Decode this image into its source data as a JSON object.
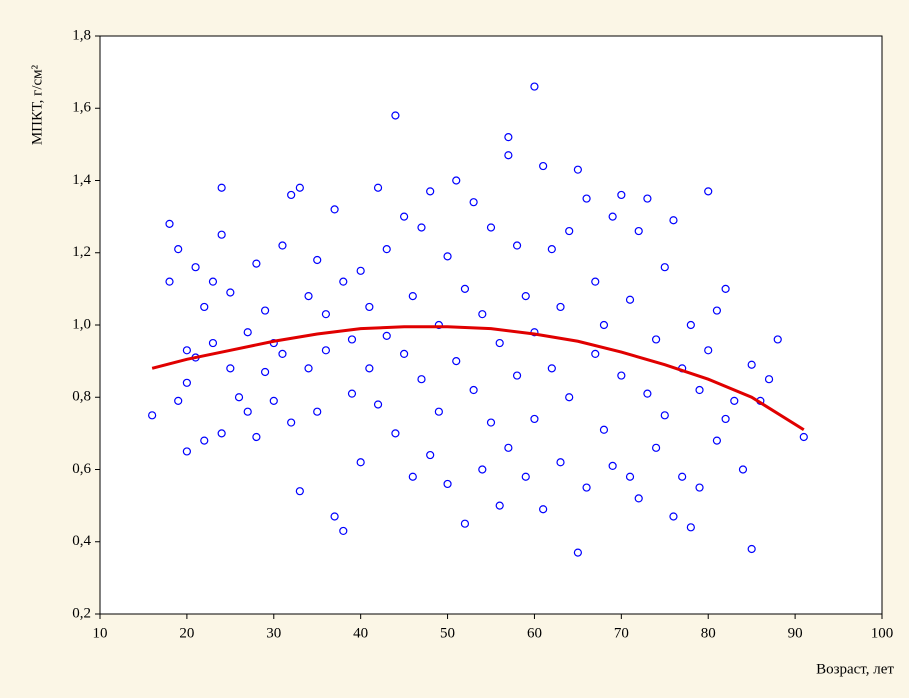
{
  "chart_data": {
    "type": "scatter",
    "x_label": "Возраст, лет",
    "y_label": "МПКТ, г/см²",
    "xlim": [
      10,
      100
    ],
    "xticks": [
      10,
      20,
      30,
      40,
      50,
      60,
      70,
      80,
      90,
      100
    ],
    "ylim": [
      0.2,
      1.8
    ],
    "yticks": [
      {
        "value": 0.2,
        "label": "0,2"
      },
      {
        "value": 0.4,
        "label": "0,4"
      },
      {
        "value": 0.6,
        "label": "0,6"
      },
      {
        "value": 0.8,
        "label": "0,8"
      },
      {
        "value": 1.0,
        "label": "1,0"
      },
      {
        "value": 1.2,
        "label": "1,2"
      },
      {
        "value": 1.4,
        "label": "1,4"
      },
      {
        "value": 1.6,
        "label": "1,6"
      },
      {
        "value": 1.8,
        "label": "1,8"
      }
    ],
    "points": {
      "color": "#0000ff",
      "x": [
        16,
        18,
        18,
        19,
        19,
        20,
        20,
        20,
        21,
        21,
        22,
        22,
        23,
        23,
        24,
        24,
        24,
        25,
        25,
        26,
        27,
        27,
        28,
        28,
        29,
        29,
        30,
        30,
        31,
        31,
        32,
        32,
        33,
        33,
        34,
        34,
        35,
        35,
        36,
        36,
        37,
        37,
        38,
        38,
        39,
        39,
        40,
        40,
        41,
        41,
        42,
        42,
        43,
        43,
        44,
        44,
        45,
        45,
        46,
        46,
        47,
        47,
        48,
        48,
        49,
        49,
        50,
        50,
        51,
        51,
        52,
        52,
        53,
        53,
        54,
        54,
        55,
        55,
        56,
        56,
        57,
        57,
        57,
        58,
        58,
        59,
        59,
        60,
        60,
        60,
        61,
        61,
        62,
        62,
        63,
        63,
        64,
        64,
        65,
        65,
        66,
        66,
        67,
        67,
        68,
        68,
        69,
        69,
        70,
        70,
        71,
        71,
        72,
        72,
        73,
        73,
        74,
        74,
        75,
        75,
        76,
        76,
        77,
        77,
        78,
        78,
        79,
        79,
        80,
        80,
        81,
        81,
        82,
        82,
        83,
        84,
        85,
        85,
        86,
        87,
        88,
        91
      ],
      "y": [
        0.75,
        1.28,
        1.12,
        1.21,
        0.79,
        0.93,
        0.65,
        0.84,
        0.91,
        1.16,
        0.68,
        1.05,
        0.95,
        1.12,
        1.38,
        0.7,
        1.25,
        0.88,
        1.09,
        0.8,
        0.98,
        0.76,
        1.17,
        0.69,
        0.87,
        1.04,
        0.95,
        0.79,
        1.22,
        0.92,
        1.36,
        0.73,
        1.38,
        0.54,
        1.08,
        0.88,
        1.18,
        0.76,
        1.03,
        0.93,
        0.47,
        1.32,
        0.43,
        1.12,
        0.81,
        0.96,
        1.15,
        0.62,
        0.88,
        1.05,
        1.38,
        0.78,
        0.97,
        1.21,
        1.58,
        0.7,
        0.92,
        1.3,
        0.58,
        1.08,
        0.85,
        1.27,
        1.37,
        0.64,
        1.0,
        0.76,
        0.56,
        1.19,
        1.4,
        0.9,
        0.45,
        1.1,
        0.82,
        1.34,
        0.6,
        1.03,
        1.27,
        0.73,
        0.95,
        0.5,
        1.52,
        1.47,
        0.66,
        1.22,
        0.86,
        1.08,
        0.58,
        1.66,
        0.98,
        0.74,
        1.44,
        0.49,
        0.88,
        1.21,
        0.62,
        1.05,
        1.26,
        0.8,
        0.37,
        1.43,
        1.35,
        0.55,
        0.92,
        1.12,
        0.71,
        1.0,
        1.3,
        0.61,
        1.36,
        0.86,
        0.58,
        1.07,
        1.26,
        0.52,
        0.81,
        1.35,
        0.96,
        0.66,
        1.16,
        0.75,
        1.29,
        0.47,
        0.88,
        0.58,
        0.44,
        1.0,
        0.82,
        0.55,
        1.37,
        0.93,
        1.04,
        0.68,
        0.74,
        1.1,
        0.79,
        0.6,
        0.38,
        0.89,
        0.79,
        0.85,
        0.96,
        0.69
      ]
    },
    "fit": {
      "color": "#e00000",
      "x": [
        16,
        20,
        25,
        30,
        35,
        40,
        45,
        50,
        55,
        60,
        65,
        70,
        75,
        80,
        85,
        91
      ],
      "y": [
        0.88,
        0.905,
        0.93,
        0.955,
        0.975,
        0.99,
        0.995,
        0.995,
        0.99,
        0.975,
        0.955,
        0.925,
        0.89,
        0.85,
        0.8,
        0.71
      ]
    }
  }
}
